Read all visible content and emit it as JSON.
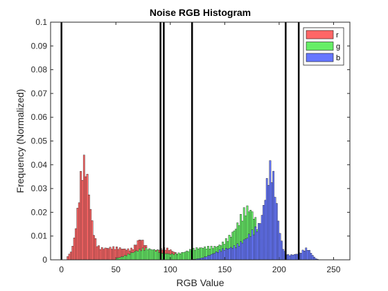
{
  "chart_data": {
    "type": "bar",
    "title": "Noise RGB Histogram",
    "xlabel": "RGB Value",
    "ylabel": "Frequency (Normalized)",
    "xlim": [
      -10,
      265
    ],
    "ylim": [
      0,
      0.1
    ],
    "xticks": [
      "0",
      "50",
      "100",
      "150",
      "200",
      "250"
    ],
    "xtick_values": [
      0,
      50,
      100,
      150,
      200,
      250
    ],
    "yticks": [
      "0",
      "0.01",
      "0.02",
      "0.03",
      "0.04",
      "0.05",
      "0.06",
      "0.07",
      "0.08",
      "0.09",
      "0.1"
    ],
    "ytick_values": [
      0,
      0.01,
      0.02,
      0.03,
      0.04,
      0.05,
      0.06,
      0.07,
      0.08,
      0.09,
      0.1
    ],
    "legend_position": "top-right",
    "vertical_lines": [
      0,
      91,
      94,
      120,
      206,
      218
    ],
    "series": [
      {
        "name": "r",
        "color": "#ff6666",
        "peaks": [
          {
            "center": 20,
            "height": 0.037,
            "width": 5
          },
          {
            "center": 46,
            "height": 0.005,
            "width": 24
          },
          {
            "center": 72,
            "height": 0.0055,
            "width": 4
          },
          {
            "center": 95,
            "height": 0.004,
            "width": 10
          }
        ],
        "x_range": [
          5,
          122
        ]
      },
      {
        "name": "g",
        "color": "#66ee66",
        "peaks": [
          {
            "center": 77,
            "height": 0.0045,
            "width": 14
          },
          {
            "center": 130,
            "height": 0.005,
            "width": 18
          },
          {
            "center": 173,
            "height": 0.017,
            "width": 8
          },
          {
            "center": 160,
            "height": 0.008,
            "width": 10
          }
        ],
        "x_range": [
          50,
          200
        ]
      },
      {
        "name": "b",
        "color": "#6677ff",
        "peaks": [
          {
            "center": 192,
            "height": 0.03,
            "width": 5
          },
          {
            "center": 180,
            "height": 0.012,
            "width": 12
          },
          {
            "center": 150,
            "height": 0.004,
            "width": 12
          },
          {
            "center": 225,
            "height": 0.004,
            "width": 4
          },
          {
            "center": 215,
            "height": 0.002,
            "width": 6
          }
        ],
        "x_range": [
          95,
          240
        ]
      }
    ]
  }
}
